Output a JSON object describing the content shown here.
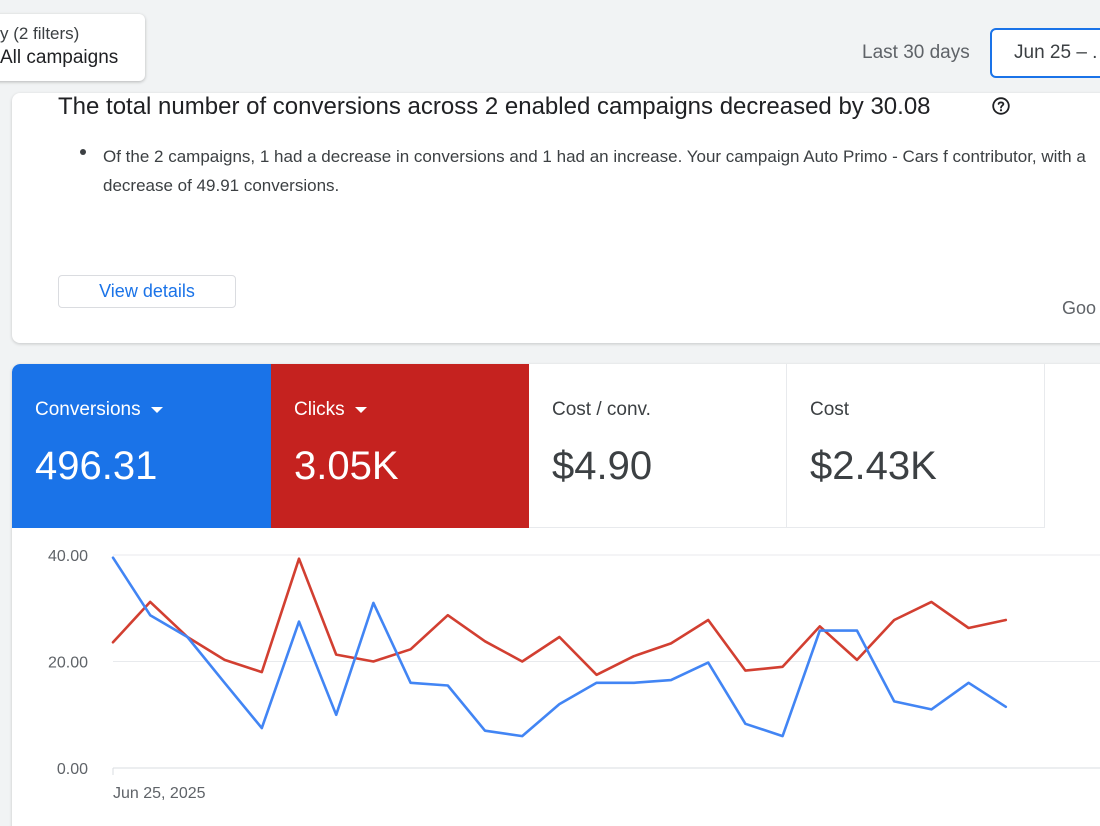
{
  "filter": {
    "line1": "y (2 filters)",
    "line2": "All campaigns"
  },
  "date_range": {
    "label": "Last 30 days",
    "value": "Jun 25 – ."
  },
  "insight": {
    "title": "The total number of conversions across 2 enabled campaigns decreased by 30.08",
    "help_icon": "help-circle-icon",
    "bullet": "Of the 2 campaigns, 1 had a decrease in conversions and 1 had an increase. Your campaign Auto Primo - Cars f contributor, with a decrease of 49.91 conversions.",
    "view_details_label": "View details",
    "source_label": "Goo"
  },
  "metrics": {
    "conversions": {
      "label": "Conversions",
      "value": "496.31",
      "color": "#1a73e8"
    },
    "clicks": {
      "label": "Clicks",
      "value": "3.05K",
      "color": "#c5221f"
    },
    "cost_per_conv": {
      "label": "Cost / conv.",
      "value": "$4.90"
    },
    "cost": {
      "label": "Cost",
      "value": "$2.43K"
    }
  },
  "chart_data": {
    "type": "line",
    "y_ticks": [
      "40.00",
      "20.00",
      "0.00"
    ],
    "ylim": [
      0,
      40
    ],
    "x_start_label": "Jun 25, 2025",
    "grid": true,
    "series": [
      {
        "name": "Conversions",
        "color": "#4285f4",
        "values": [
          39.5,
          28.7,
          24.6,
          16.0,
          7.5,
          27.5,
          10.0,
          31.0,
          16.0,
          15.5,
          7.0,
          6.0,
          12.0,
          16.0,
          16.0,
          16.5,
          19.8,
          8.3,
          6.0,
          25.8,
          25.8,
          12.5,
          11.0,
          16.0,
          11.5
        ]
      },
      {
        "name": "Clicks",
        "color": "#d23f31",
        "values": [
          23.6,
          31.2,
          24.6,
          20.3,
          18.0,
          39.3,
          21.3,
          20.0,
          22.3,
          28.7,
          23.8,
          20.0,
          24.6,
          17.5,
          21.0,
          23.4,
          27.8,
          18.3,
          19.0,
          26.6,
          20.3,
          27.8,
          31.2,
          26.3,
          27.8
        ]
      }
    ]
  }
}
